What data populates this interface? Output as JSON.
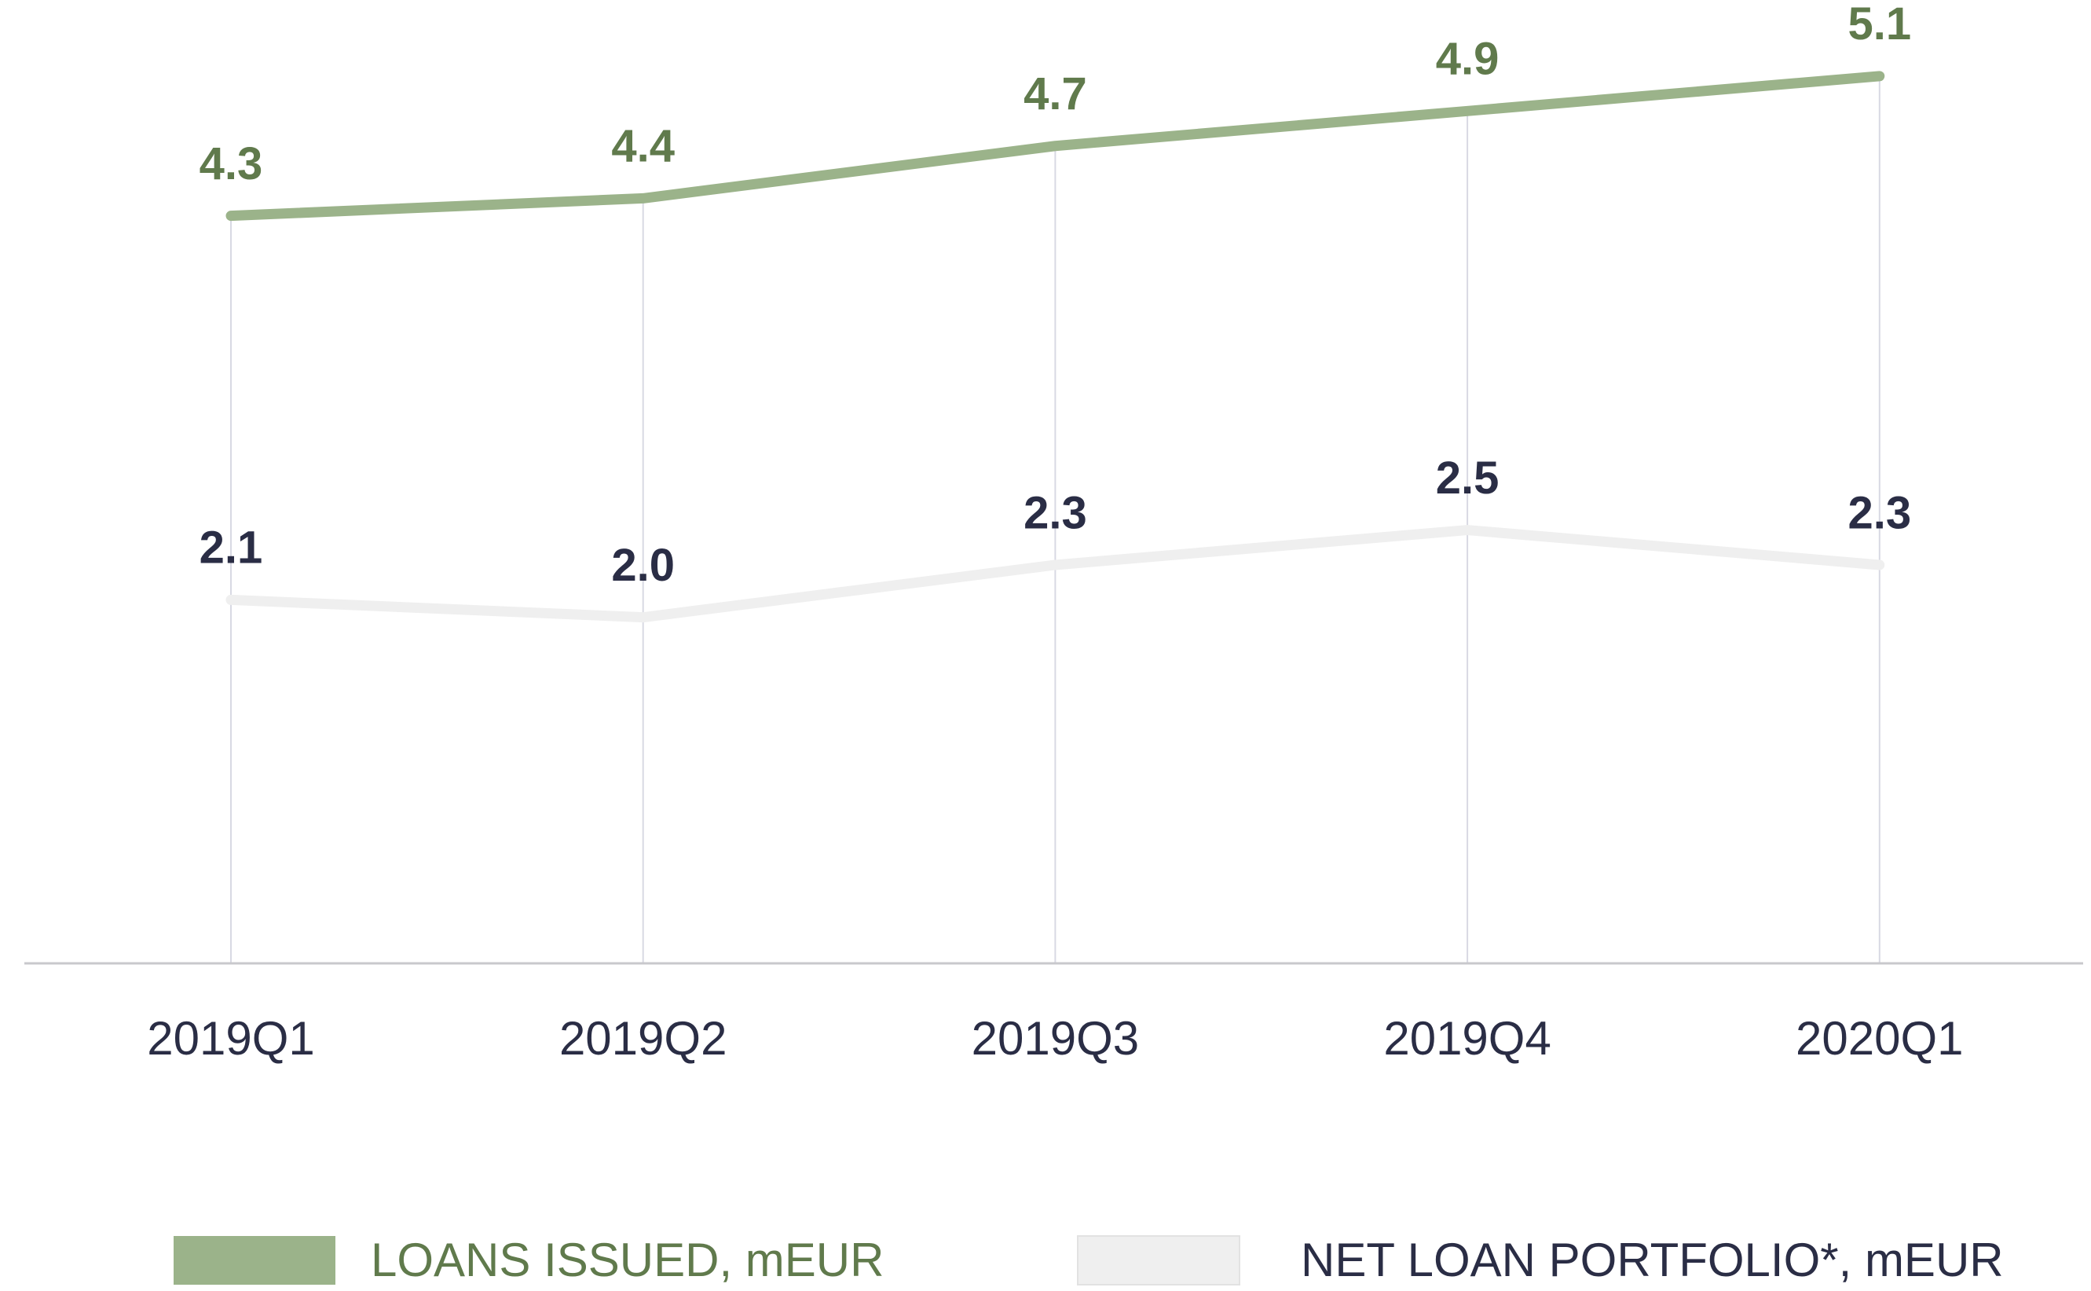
{
  "chart_data": {
    "type": "line",
    "categories": [
      "2019Q1",
      "2019Q2",
      "2019Q3",
      "2019Q4",
      "2020Q1"
    ],
    "series": [
      {
        "name": "LOANS ISSUED, mEUR",
        "color": "#9bb38a",
        "label_color": "#607a4c",
        "values": [
          4.3,
          4.4,
          4.7,
          4.9,
          5.1
        ]
      },
      {
        "name": "NET LOAN PORTFOLIO*, mEUR",
        "color": "#efefef",
        "label_color": "#2a2d45",
        "values": [
          2.1,
          2.0,
          2.3,
          2.5,
          2.3
        ],
        "value_labels": [
          "2.1",
          "2.0",
          "2.3",
          "2.5",
          "2.3"
        ]
      }
    ],
    "ylim": [
      0,
      5.5
    ],
    "legend": "bottom"
  }
}
